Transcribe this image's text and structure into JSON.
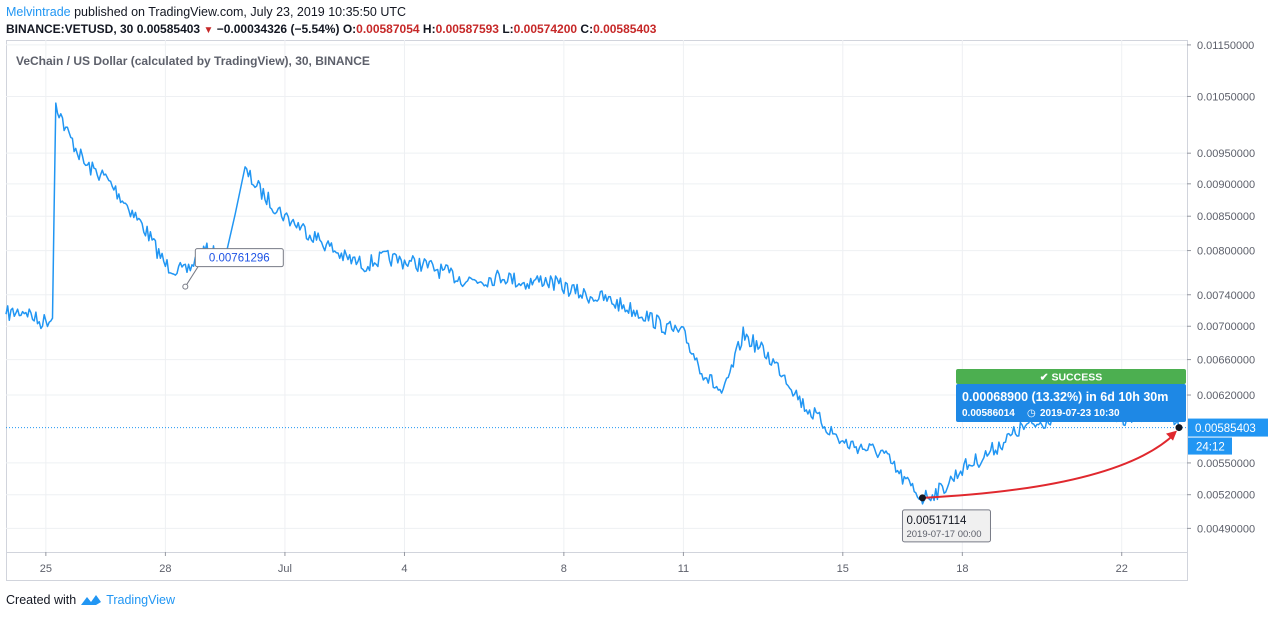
{
  "header": {
    "author": "Melvintrade",
    "publish_text": "published on TradingView.com, July 23, 2019 10:35:50 UTC",
    "symbol": "BINANCE:VETUSD, 30",
    "last": "0.00585403",
    "change": "−0.00034326 (−5.54%)",
    "o_label": "O:",
    "o_value": "0.00587054",
    "h_label": "H:",
    "h_value": "0.00587593",
    "l_label": "L:",
    "l_value": "0.00574200",
    "c_label": "C:",
    "c_value": "0.00585403"
  },
  "footer": {
    "created_with": "Created with",
    "brand": "TradingView"
  },
  "colors": {
    "line": "#2196f3",
    "grid": "#eef0f3",
    "axis": "#5d606b",
    "down": "#c62828",
    "success": "#4caf50",
    "callout": "#1e88e5",
    "arrow": "#e0282e"
  },
  "chart_data": {
    "type": "line",
    "title": "VeChain / US Dollar (calculated by TradingView), 30, BINANCE",
    "scale": "log",
    "x_ticks": [
      "25",
      "28",
      "Jul",
      "4",
      "8",
      "11",
      "15",
      "18",
      "22"
    ],
    "y_ticks": [
      "0.01150000",
      "0.01050000",
      "0.00950000",
      "0.00900000",
      "0.00850000",
      "0.00800000",
      "0.00740000",
      "0.00700000",
      "0.00660000",
      "0.00620000",
      "0.00550000",
      "0.00520000",
      "0.00490000"
    ],
    "ylim": [
      0.0047,
      0.0116
    ],
    "series": [
      {
        "x": [
          "2019-06-24 00:00",
          "2019-06-24 12:00",
          "2019-06-24 20:00",
          "2019-06-25 04:00",
          "2019-06-25 06:00",
          "2019-06-25 12:00",
          "2019-06-26 00:00",
          "2019-06-26 12:00",
          "2019-06-27 00:00",
          "2019-06-27 12:00",
          "2019-06-28 00:00",
          "2019-06-28 12:00",
          "2019-06-29 00:00",
          "2019-06-29 12:00",
          "2019-06-30 00:00",
          "2019-06-30 12:00",
          "2019-07-01 00:00",
          "2019-07-01 12:00",
          "2019-07-02 00:00",
          "2019-07-02 12:00",
          "2019-07-03 00:00",
          "2019-07-03 12:00",
          "2019-07-04 00:00",
          "2019-07-04 12:00",
          "2019-07-05 00:00",
          "2019-07-05 12:00",
          "2019-07-06 00:00",
          "2019-07-06 12:00",
          "2019-07-07 00:00",
          "2019-07-07 12:00",
          "2019-07-08 00:00",
          "2019-07-08 12:00",
          "2019-07-09 00:00",
          "2019-07-09 12:00",
          "2019-07-10 00:00",
          "2019-07-10 12:00",
          "2019-07-11 00:00",
          "2019-07-11 12:00",
          "2019-07-12 00:00",
          "2019-07-12 12:00",
          "2019-07-13 00:00",
          "2019-07-13 12:00",
          "2019-07-14 00:00",
          "2019-07-14 12:00",
          "2019-07-15 00:00",
          "2019-07-15 12:00",
          "2019-07-16 00:00",
          "2019-07-16 12:00",
          "2019-07-17 00:00",
          "2019-07-17 12:00",
          "2019-07-18 00:00",
          "2019-07-18 12:00",
          "2019-07-19 00:00",
          "2019-07-19 12:00",
          "2019-07-20 00:00",
          "2019-07-20 12:00",
          "2019-07-21 00:00",
          "2019-07-21 12:00",
          "2019-07-22 00:00",
          "2019-07-22 12:00",
          "2019-07-23 00:00",
          "2019-07-23 10:30"
        ],
        "y": [
          0.00715,
          0.0072,
          0.00705,
          0.0071,
          0.0104,
          0.0099,
          0.0093,
          0.0091,
          0.0087,
          0.0083,
          0.0078,
          0.0077,
          0.008,
          0.0079,
          0.0092,
          0.0088,
          0.0085,
          0.0083,
          0.0081,
          0.0079,
          0.0078,
          0.0079,
          0.00785,
          0.0078,
          0.0077,
          0.0076,
          0.0076,
          0.00765,
          0.00755,
          0.0076,
          0.0075,
          0.0074,
          0.00735,
          0.00725,
          0.00715,
          0.007,
          0.0069,
          0.00645,
          0.0062,
          0.0069,
          0.0067,
          0.00645,
          0.0061,
          0.0059,
          0.0057,
          0.00565,
          0.0056,
          0.00535,
          0.00517,
          0.00525,
          0.00545,
          0.00555,
          0.0057,
          0.00585,
          0.0059,
          0.00605,
          0.0061,
          0.006,
          0.00595,
          0.006,
          0.00605,
          0.00585403
        ]
      }
    ],
    "annotations": {
      "price_note": {
        "text": "0.00761296",
        "x": "2019-06-28 12:00",
        "y": 0.00761296
      },
      "low_note": {
        "price": "0.00517114",
        "time": "2019-07-17 00:00",
        "x": "2019-07-17 00:00",
        "y": 0.00517114
      },
      "end_point": {
        "x": "2019-07-23 10:30",
        "y": 0.00585403
      },
      "result": {
        "badge": "✔ SUCCESS",
        "main": "0.00068900 (13.32%)  in 6d 10h 30m",
        "sub_price": "0.00586014",
        "sub_time": "2019-07-23   10:30"
      },
      "last_label": "0.00585403",
      "countdown": "24:12"
    }
  }
}
